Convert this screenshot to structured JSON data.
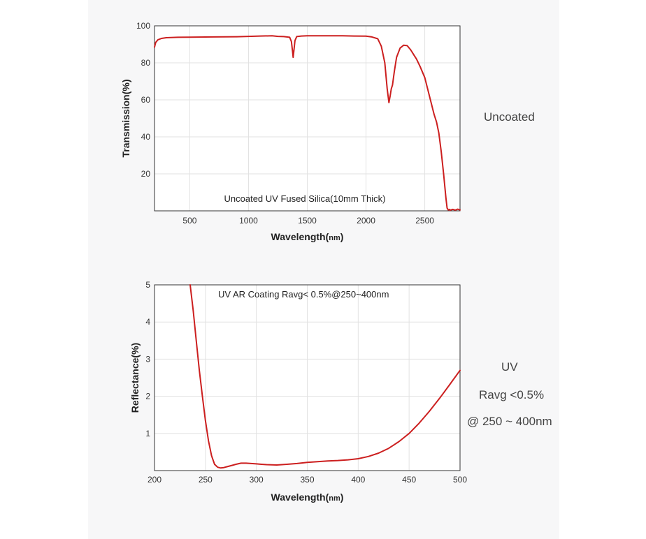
{
  "chart_data": [
    {
      "type": "line",
      "title": "Uncoated UV Fused Silica(10mm Thick)",
      "xlabel": "Wavelength",
      "xunit": "nm",
      "ylabel": "Transmission(%)",
      "xlim": [
        200,
        2800
      ],
      "ylim": [
        0,
        100
      ],
      "xticks": [
        500,
        1000,
        1500,
        2000,
        2500
      ],
      "yticks": [
        20,
        40,
        60,
        80,
        100
      ],
      "color": "#cc1f1f",
      "grid": true,
      "series": [
        {
          "x": [
            200,
            210,
            230,
            260,
            300,
            400,
            500,
            700,
            900,
            1000,
            1100,
            1200,
            1250,
            1300,
            1350,
            1365,
            1375,
            1380,
            1385,
            1395,
            1410,
            1450,
            1500,
            1600,
            1700,
            1800,
            1900,
            2000,
            2050,
            2100,
            2130,
            2160,
            2180,
            2195,
            2205,
            2215,
            2225,
            2240,
            2260,
            2290,
            2320,
            2350,
            2380,
            2400,
            2430,
            2460,
            2500,
            2540,
            2580,
            2600,
            2620,
            2640,
            2660,
            2680,
            2690,
            2700,
            2710,
            2715,
            2720,
            2740,
            2760,
            2780,
            2800
          ],
          "y": [
            88.5,
            91,
            92.5,
            93.2,
            93.6,
            93.8,
            93.9,
            94,
            94.1,
            94.3,
            94.5,
            94.6,
            94.3,
            94.2,
            93.8,
            91.5,
            86,
            83,
            86,
            92,
            94.2,
            94.5,
            94.6,
            94.6,
            94.6,
            94.6,
            94.5,
            94.4,
            94,
            93,
            89,
            80,
            66,
            58.5,
            62,
            66,
            68,
            75,
            83,
            88,
            89.5,
            89.3,
            87,
            85,
            82,
            78,
            72,
            62,
            52,
            48,
            42,
            32,
            20,
            7,
            1.5,
            0.5,
            0.8,
            0.3,
            0.5,
            0.8,
            0.4,
            0.9,
            0.5
          ]
        }
      ]
    },
    {
      "type": "line",
      "title": "UV AR Coating Ravg< 0.5%@250~400nm",
      "xlabel": "Wavelength",
      "xunit": "nm",
      "ylabel": "Reflectance(%)",
      "xlim": [
        200,
        500
      ],
      "ylim": [
        0,
        5
      ],
      "xticks": [
        200,
        250,
        300,
        350,
        400,
        450,
        500
      ],
      "yticks": [
        1,
        2,
        3,
        4,
        5
      ],
      "color": "#cc1f1f",
      "grid": true,
      "series": [
        {
          "x": [
            235,
            238,
            241,
            244,
            247,
            250,
            253,
            256,
            259,
            262,
            265,
            268,
            272,
            276,
            280,
            285,
            290,
            295,
            300,
            305,
            310,
            320,
            330,
            340,
            350,
            360,
            370,
            380,
            390,
            400,
            410,
            420,
            430,
            440,
            450,
            460,
            470,
            480,
            490,
            500
          ],
          "y": [
            5.0,
            4.3,
            3.5,
            2.7,
            2.0,
            1.35,
            0.8,
            0.4,
            0.17,
            0.09,
            0.07,
            0.08,
            0.11,
            0.14,
            0.17,
            0.2,
            0.2,
            0.19,
            0.18,
            0.17,
            0.16,
            0.15,
            0.17,
            0.19,
            0.22,
            0.24,
            0.26,
            0.27,
            0.29,
            0.32,
            0.38,
            0.47,
            0.6,
            0.78,
            1.0,
            1.28,
            1.6,
            1.95,
            2.32,
            2.7
          ]
        }
      ]
    }
  ],
  "side_labels": {
    "top": "Uncoated",
    "bottom_line1": "UV",
    "bottom_line2": "Ravg <0.5%",
    "bottom_line3": "@ 250 ~ 400nm"
  }
}
